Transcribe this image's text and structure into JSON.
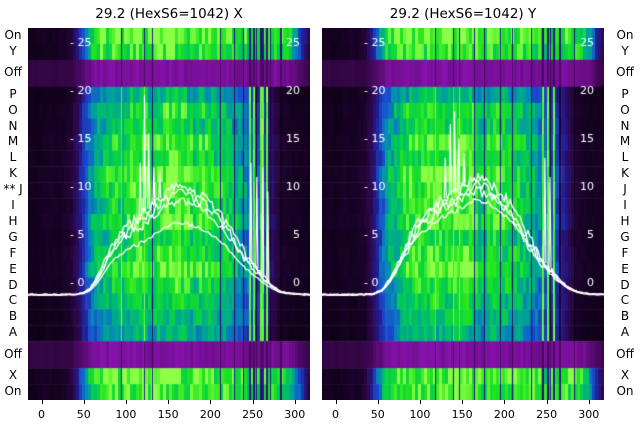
{
  "colors": {
    "background": "#ffffff",
    "text": "#000000",
    "curve": "#ffffff",
    "off_band": "#8a12b0"
  },
  "row_marker": "**",
  "chart_data": {
    "type": "heatmap",
    "description": "Two wire-profile heatmaps with overlaid white intensity profile traces",
    "shared": {
      "x_ticks": [
        0,
        50,
        100,
        150,
        200,
        250,
        300
      ],
      "y_ticks": [
        25,
        20,
        15,
        10,
        5,
        0
      ],
      "y_tick_format": {
        "left_prefix": "- ",
        "right_prefix": ""
      },
      "x_range": [
        -16,
        318
      ],
      "y_scale": {
        "min": 0,
        "max": 25,
        "frac0": 0.686,
        "frac1": 0.04
      },
      "colormap": [
        [
          0.0,
          "#06000a"
        ],
        [
          0.12,
          "#2c0646"
        ],
        [
          0.28,
          "#221e96"
        ],
        [
          0.42,
          "#1850d2"
        ],
        [
          0.56,
          "#0096aa"
        ],
        [
          0.7,
          "#00c85a"
        ],
        [
          0.85,
          "#1ee41e"
        ],
        [
          1.0,
          "#8cff46"
        ]
      ],
      "off_ramp": [
        "#1a0226",
        "#8a12b0"
      ],
      "rows": [
        {
          "label": "On",
          "state": "band",
          "mod": 1.0
        },
        {
          "label": "Y",
          "state": "band",
          "mod": 0.92
        },
        {
          "label": "Off",
          "state": "off",
          "weight": 1.7
        },
        {
          "label": "P",
          "state": "main",
          "mod": 0.72
        },
        {
          "label": "O",
          "state": "main",
          "mod": 0.9
        },
        {
          "label": "N",
          "state": "main",
          "mod": 0.85
        },
        {
          "label": "M",
          "state": "main",
          "mod": 1.0
        },
        {
          "label": "L",
          "state": "main",
          "mod": 0.92
        },
        {
          "label": "K",
          "state": "main",
          "mod": 1.05
        },
        {
          "label": "J",
          "state": "main",
          "mod": 1.0,
          "marker": "**"
        },
        {
          "label": "I",
          "state": "main",
          "mod": 0.95
        },
        {
          "label": "H",
          "state": "main",
          "mod": 1.0
        },
        {
          "label": "G",
          "state": "main",
          "mod": 0.88
        },
        {
          "label": "F",
          "state": "main",
          "mod": 0.95
        },
        {
          "label": "E",
          "state": "main",
          "mod": 1.0
        },
        {
          "label": "D",
          "state": "main",
          "mod": 0.9
        },
        {
          "label": "C",
          "state": "main",
          "mod": 0.82
        },
        {
          "label": "B",
          "state": "main",
          "mod": 0.76
        },
        {
          "label": "A",
          "state": "main",
          "mod": 0.7
        },
        {
          "label": "Off",
          "state": "off",
          "weight": 1.7
        },
        {
          "label": "X",
          "state": "band",
          "mod": 1.0
        },
        {
          "label": "On",
          "state": "band",
          "mod": 0.95
        }
      ]
    },
    "panels": [
      {
        "key": "x",
        "title": "29.2 (HexS6=1042) X",
        "seed": 3.7,
        "main_cols": [
          0.05,
          0.04,
          0.05,
          0.06,
          0.05,
          0.06,
          0.09,
          0.2,
          0.45,
          0.62,
          0.72,
          0.78,
          0.85,
          0.75,
          0.88,
          0.92,
          0.95,
          0.82,
          0.9,
          0.95,
          0.97,
          0.94,
          0.9,
          0.82,
          0.88,
          0.84,
          0.78,
          0.8,
          0.74,
          0.66,
          0.56,
          0.46,
          0.4,
          0.34,
          0.16,
          0.08,
          0.06,
          0.05,
          0.05,
          0.04
        ],
        "band_cols": [
          0.04,
          0.04,
          0.05,
          0.05,
          0.05,
          0.06,
          0.1,
          0.3,
          0.6,
          0.85,
          0.95,
          0.92,
          0.96,
          0.9,
          0.95,
          0.97,
          0.95,
          0.9,
          0.94,
          0.96,
          0.95,
          0.93,
          0.9,
          0.88,
          0.92,
          0.9,
          0.88,
          0.9,
          0.88,
          0.86,
          0.84,
          0.8,
          0.82,
          0.85,
          0.88,
          0.85,
          0.8,
          0.6,
          0.3,
          0.1
        ],
        "stripes": [
          {
            "x": 95,
            "w": 1.2,
            "type": "bright"
          },
          {
            "x": 122,
            "w": 1.5,
            "type": "bright"
          },
          {
            "x": 131,
            "w": 1.2,
            "type": "dark"
          },
          {
            "x": 177,
            "w": 1.0,
            "type": "dark"
          },
          {
            "x": 196,
            "w": 1.0,
            "type": "dark"
          },
          {
            "x": 212,
            "w": 1.0,
            "type": "dark"
          },
          {
            "x": 228,
            "w": 1.2,
            "type": "dark"
          },
          {
            "x": 239,
            "w": 1.2,
            "type": "dark"
          },
          {
            "x": 247,
            "w": 3.0,
            "type": "bright"
          },
          {
            "x": 252,
            "w": 2.0,
            "type": "bright"
          },
          {
            "x": 255,
            "w": 1.5,
            "type": "dark"
          },
          {
            "x": 261,
            "w": 4.0,
            "type": "bright"
          },
          {
            "x": 267,
            "w": 2.0,
            "type": "bright"
          },
          {
            "x": 271,
            "w": 1.5,
            "type": "dark"
          },
          {
            "x": 284,
            "w": 2.0,
            "type": "dark"
          }
        ],
        "profile": {
          "baseline": -1.2,
          "base": [
            [
              -16,
              -1.2
            ],
            [
              20,
              -1.2
            ],
            [
              40,
              -1.15
            ],
            [
              50,
              -1.0
            ],
            [
              58,
              -0.5
            ],
            [
              66,
              0.6
            ],
            [
              74,
              2.2
            ],
            [
              82,
              3.8
            ],
            [
              90,
              4.8
            ],
            [
              98,
              5.6
            ],
            [
              106,
              6.2
            ],
            [
              114,
              6.7
            ],
            [
              122,
              7.3
            ],
            [
              130,
              8.0
            ],
            [
              138,
              8.7
            ],
            [
              146,
              9.3
            ],
            [
              154,
              9.8
            ],
            [
              162,
              10.2
            ],
            [
              170,
              10.1
            ],
            [
              178,
              9.7
            ],
            [
              186,
              9.3
            ],
            [
              194,
              8.8
            ],
            [
              202,
              8.2
            ],
            [
              210,
              7.4
            ],
            [
              218,
              6.4
            ],
            [
              226,
              5.2
            ],
            [
              234,
              4.0
            ],
            [
              242,
              2.9
            ],
            [
              250,
              2.0
            ],
            [
              258,
              1.2
            ],
            [
              266,
              0.4
            ],
            [
              274,
              -0.3
            ],
            [
              282,
              -0.8
            ],
            [
              290,
              -1.0
            ],
            [
              300,
              -1.1
            ],
            [
              318,
              -1.2
            ]
          ],
          "traces": [
            {
              "scale": 1.0,
              "jitter": 0.5
            },
            {
              "scale": 0.93,
              "jitter": 0.45
            },
            {
              "scale": 0.86,
              "jitter": 0.35
            },
            {
              "scale": 0.66,
              "jitter": 0.15
            }
          ],
          "spikes": [
            {
              "x": 117,
              "y": 12.5
            },
            {
              "x": 122,
              "y": 19.5
            },
            {
              "x": 127,
              "y": 15.5
            },
            {
              "x": 133,
              "y": 12.0
            },
            {
              "x": 140,
              "y": 11.5
            },
            {
              "x": 248,
              "y": 12.5
            },
            {
              "x": 255,
              "y": 11.0
            },
            {
              "x": 262,
              "y": 12.0
            },
            {
              "x": 268,
              "y": 9.5
            }
          ]
        }
      },
      {
        "key": "y",
        "title": "29.2 (HexS6=1042) Y",
        "seed": 9.1,
        "main_cols": [
          0.05,
          0.05,
          0.04,
          0.06,
          0.05,
          0.06,
          0.08,
          0.18,
          0.4,
          0.6,
          0.7,
          0.8,
          0.86,
          0.88,
          0.9,
          0.93,
          0.95,
          0.9,
          0.92,
          0.96,
          0.95,
          0.92,
          0.7,
          0.85,
          0.9,
          0.86,
          0.8,
          0.78,
          0.75,
          0.68,
          0.58,
          0.48,
          0.42,
          0.36,
          0.18,
          0.09,
          0.06,
          0.05,
          0.05,
          0.04
        ],
        "band_cols": [
          0.04,
          0.05,
          0.04,
          0.05,
          0.06,
          0.05,
          0.1,
          0.28,
          0.58,
          0.84,
          0.94,
          0.93,
          0.95,
          0.92,
          0.96,
          0.95,
          0.94,
          0.92,
          0.95,
          0.96,
          0.94,
          0.92,
          0.9,
          0.89,
          0.93,
          0.91,
          0.89,
          0.9,
          0.89,
          0.87,
          0.85,
          0.82,
          0.84,
          0.86,
          0.89,
          0.86,
          0.81,
          0.62,
          0.32,
          0.1
        ],
        "stripes": [
          {
            "x": 118,
            "w": 1.0,
            "type": "bright"
          },
          {
            "x": 140,
            "w": 1.5,
            "type": "bright"
          },
          {
            "x": 147,
            "w": 1.0,
            "type": "bright"
          },
          {
            "x": 165,
            "w": 1.5,
            "type": "dark"
          },
          {
            "x": 176,
            "w": 1.0,
            "type": "dark"
          },
          {
            "x": 195,
            "w": 1.0,
            "type": "dark"
          },
          {
            "x": 210,
            "w": 1.0,
            "type": "dark"
          },
          {
            "x": 232,
            "w": 1.2,
            "type": "dark"
          },
          {
            "x": 246,
            "w": 3.0,
            "type": "bright"
          },
          {
            "x": 252,
            "w": 2.0,
            "type": "bright"
          },
          {
            "x": 255,
            "w": 1.2,
            "type": "dark"
          },
          {
            "x": 259,
            "w": 3.0,
            "type": "bright"
          },
          {
            "x": 266,
            "w": 2.0,
            "type": "dark"
          },
          {
            "x": 283,
            "w": 2.0,
            "type": "dark"
          }
        ],
        "profile": {
          "baseline": -1.2,
          "base": [
            [
              -16,
              -1.2
            ],
            [
              25,
              -1.2
            ],
            [
              45,
              -1.1
            ],
            [
              55,
              -0.7
            ],
            [
              63,
              0.2
            ],
            [
              71,
              1.6
            ],
            [
              79,
              3.2
            ],
            [
              87,
              4.6
            ],
            [
              95,
              5.8
            ],
            [
              103,
              6.8
            ],
            [
              111,
              7.6
            ],
            [
              119,
              8.2
            ],
            [
              127,
              8.7
            ],
            [
              135,
              9.1
            ],
            [
              143,
              9.5
            ],
            [
              151,
              10.0
            ],
            [
              159,
              10.5
            ],
            [
              167,
              10.8
            ],
            [
              175,
              10.6
            ],
            [
              183,
              10.2
            ],
            [
              191,
              9.7
            ],
            [
              199,
              9.0
            ],
            [
              207,
              8.1
            ],
            [
              215,
              7.0
            ],
            [
              223,
              5.7
            ],
            [
              231,
              4.4
            ],
            [
              239,
              3.2
            ],
            [
              247,
              2.2
            ],
            [
              255,
              1.4
            ],
            [
              263,
              0.6
            ],
            [
              271,
              -0.1
            ],
            [
              279,
              -0.6
            ],
            [
              287,
              -0.9
            ],
            [
              295,
              -1.05
            ],
            [
              305,
              -1.15
            ],
            [
              318,
              -1.2
            ]
          ],
          "traces": [
            {
              "scale": 1.0,
              "jitter": 0.55
            },
            {
              "scale": 0.95,
              "jitter": 0.5
            },
            {
              "scale": 0.9,
              "jitter": 0.4
            },
            {
              "scale": 0.82,
              "jitter": 0.25
            }
          ],
          "spikes": [
            {
              "x": 130,
              "y": 13.0
            },
            {
              "x": 136,
              "y": 16.5
            },
            {
              "x": 141,
              "y": 17.8
            },
            {
              "x": 146,
              "y": 15.0
            },
            {
              "x": 152,
              "y": 13.5
            },
            {
              "x": 248,
              "y": 13.0
            },
            {
              "x": 254,
              "y": 11.0
            }
          ]
        }
      }
    ]
  }
}
